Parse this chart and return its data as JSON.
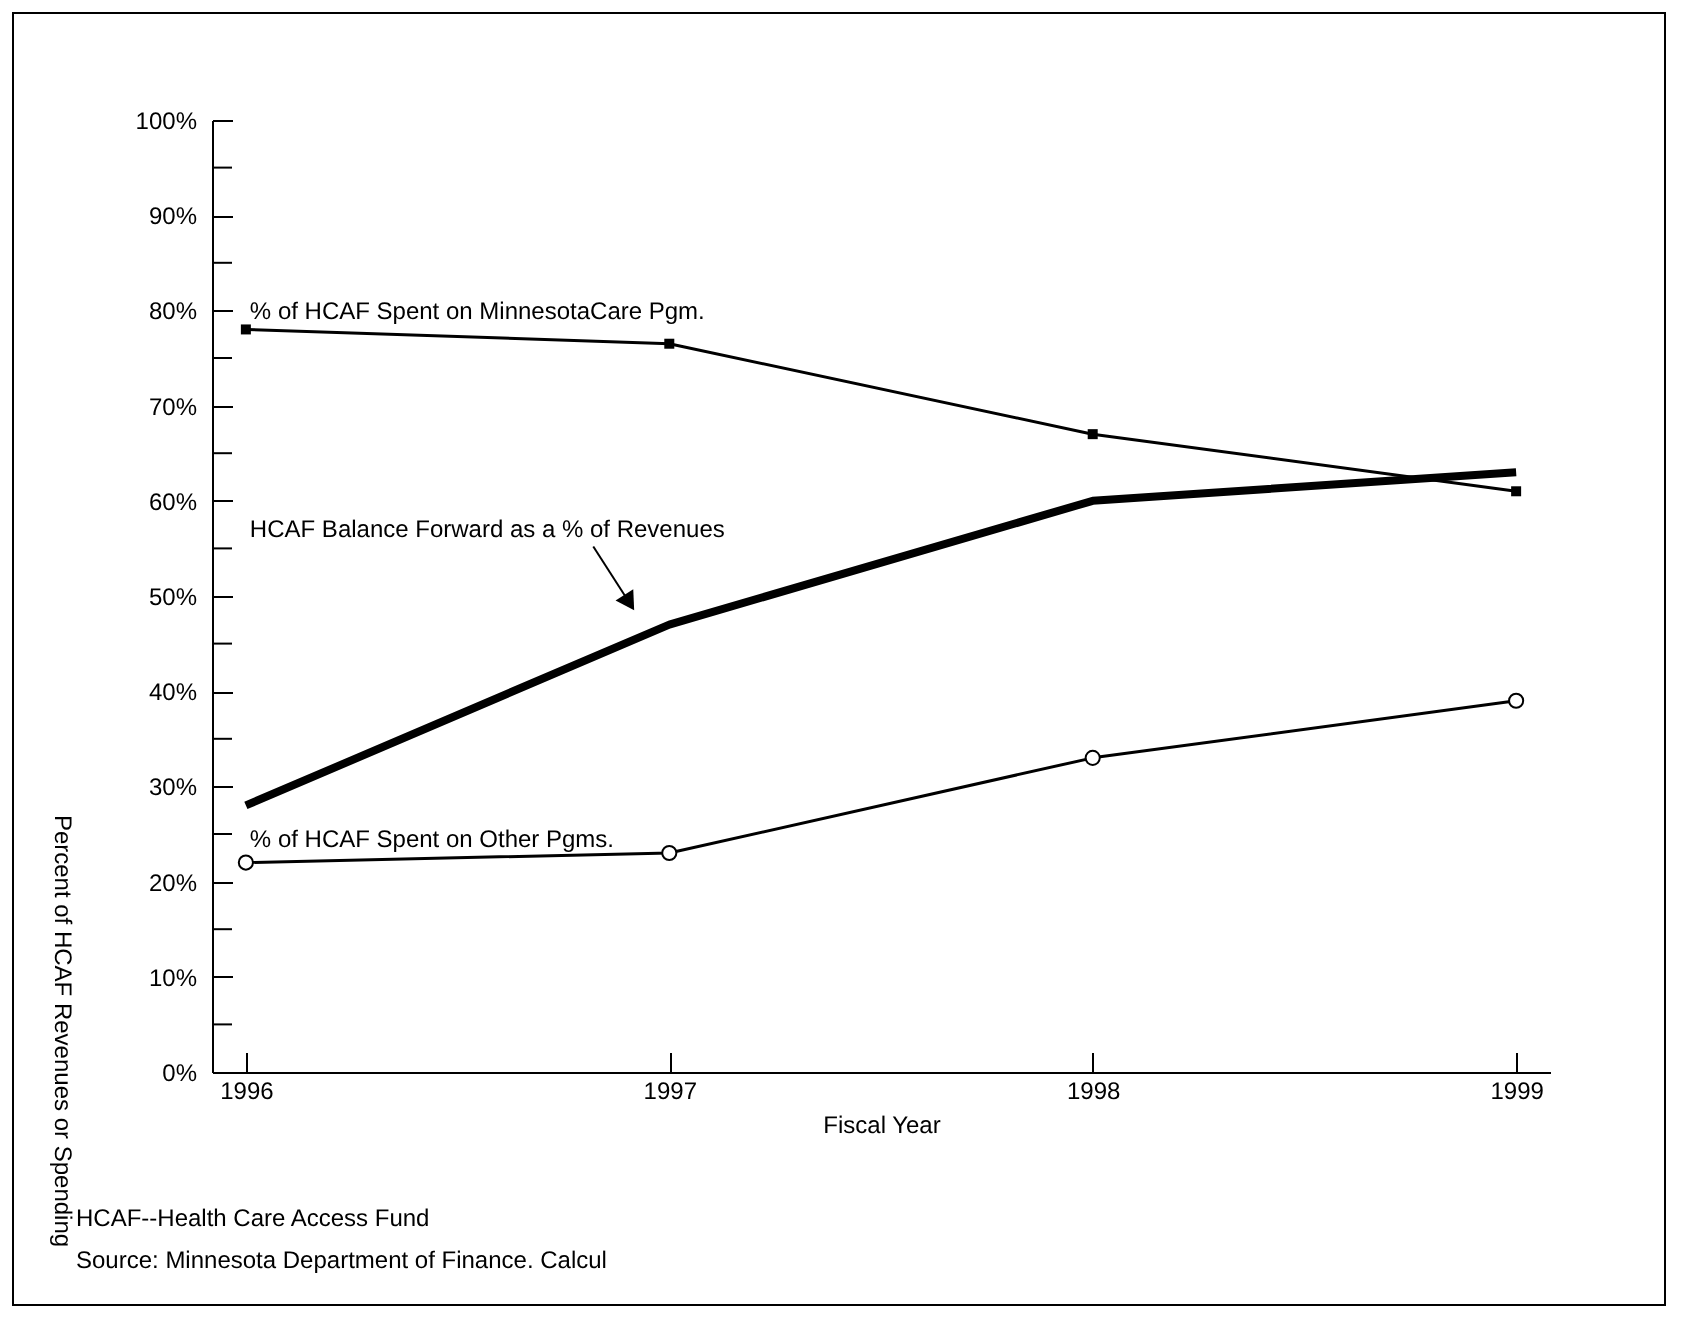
{
  "chart_data": {
    "type": "line",
    "xlabel": "Fiscal Year",
    "ylabel": "Percent of HCAF Revenues or Spending",
    "categories": [
      "1996",
      "1997",
      "1998",
      "1999"
    ],
    "series": [
      {
        "name": "% of HCAF Spent on MinnesotaCare Pgm.",
        "color": "#000000",
        "marker": "square",
        "values": [
          78,
          76.5,
          67,
          61
        ]
      },
      {
        "name": "HCAF Balance Forward as a % of Revenues",
        "color": "#000000",
        "marker": "none",
        "values": [
          28,
          47,
          60,
          63
        ]
      },
      {
        "name": "% of HCAF Spent on Other Pgms.",
        "color": "#000000",
        "marker": "circle",
        "values": [
          22,
          23,
          33,
          39
        ]
      }
    ],
    "ylim": [
      0,
      100
    ],
    "yticks": [
      {
        "value": 0,
        "label": "0%"
      },
      {
        "value": 5,
        "label": null
      },
      {
        "value": 10,
        "label": "10%"
      },
      {
        "value": 15,
        "label": null
      },
      {
        "value": 20,
        "label": "20%"
      },
      {
        "value": 25,
        "label": null
      },
      {
        "value": 30,
        "label": "30%"
      },
      {
        "value": 35,
        "label": null
      },
      {
        "value": 40,
        "label": "40%"
      },
      {
        "value": 45,
        "label": null
      },
      {
        "value": 50,
        "label": "50%"
      },
      {
        "value": 55,
        "label": null
      },
      {
        "value": 60,
        "label": "60%"
      },
      {
        "value": 65,
        "label": null
      },
      {
        "value": 70,
        "label": "70%"
      },
      {
        "value": 75,
        "label": null
      },
      {
        "value": 80,
        "label": "80%"
      },
      {
        "value": 85,
        "label": null
      },
      {
        "value": 90,
        "label": "90%"
      },
      {
        "value": 95,
        "label": null
      },
      {
        "value": 100,
        "label": "100%"
      }
    ],
    "grid": false,
    "legend": false,
    "annotations": [
      "HCAF--Health Care Access Fund",
      "Source:  Minnesota Department of Finance. Calcul"
    ]
  }
}
